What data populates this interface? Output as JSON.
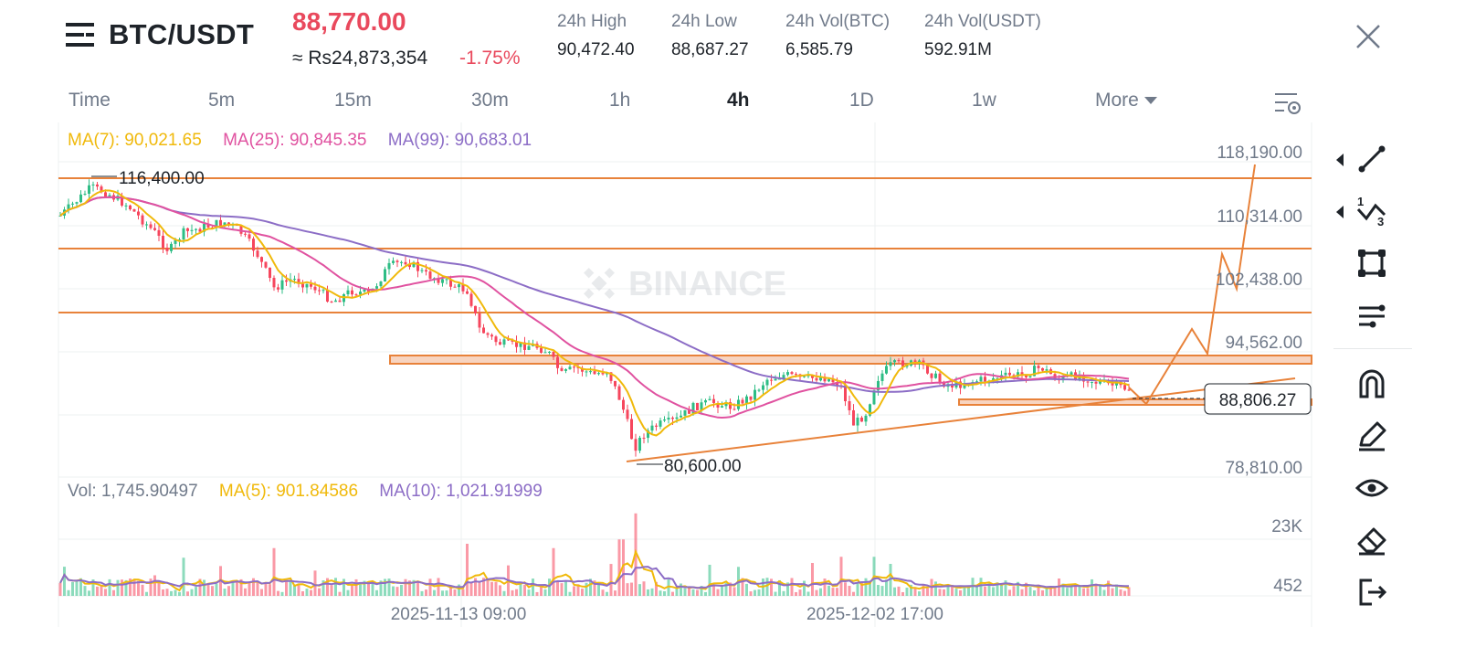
{
  "header": {
    "pair": "BTC/USDT",
    "price": "88,770.00",
    "converted": "≈ Rs24,873,354",
    "change": "-1.75%",
    "stats": [
      {
        "label": "24h High",
        "value": "90,472.40"
      },
      {
        "label": "24h Low",
        "value": "88,687.27"
      },
      {
        "label": "24h Vol(BTC)",
        "value": "6,585.79"
      },
      {
        "label": "24h Vol(USDT)",
        "value": "592.91M"
      }
    ]
  },
  "tabs": [
    {
      "label": "Time"
    },
    {
      "label": "5m"
    },
    {
      "label": "15m"
    },
    {
      "label": "30m"
    },
    {
      "label": "1h"
    },
    {
      "label": "4h"
    },
    {
      "label": "1D"
    },
    {
      "label": "1w"
    },
    {
      "label": "More"
    }
  ],
  "active_tab": "4h",
  "legend": {
    "ma7": "MA(7): 90,021.65",
    "ma25": "MA(25): 90,845.35",
    "ma99": "MA(99): 90,683.01"
  },
  "volume_legend": {
    "vol": "Vol: 1,745.90497",
    "ma5": "MA(5): 901.84586",
    "ma10": "MA(10): 1,021.91999"
  },
  "watermark": "BINANCE",
  "price_axis": [
    "118,190.00",
    "110,314.00",
    "102,438.00",
    "94,562.00",
    "78,810.00"
  ],
  "current_price_tag": "88,806.27",
  "volume_axis": [
    "23K",
    "452"
  ],
  "date_labels": [
    "2025-11-13 09:00",
    "2025-12-02 17:00"
  ],
  "annotations": {
    "high": "116,400.00",
    "low": "80,600.00"
  },
  "tools": [
    "trend-line-icon",
    "fibonacci-icon",
    "shape-icon",
    "parallel-lines-icon",
    "magnet-icon",
    "pencil-icon",
    "eye-icon",
    "eraser-icon",
    "exit-icon"
  ],
  "colors": {
    "up": "#2ebd85",
    "down": "#f6465d",
    "price_red": "#e9495d",
    "ma7": "#f0b90b",
    "ma25": "#e052a0",
    "ma99": "#8c6dc6",
    "drawing": "#e8823a",
    "text_muted": "#707a8a"
  },
  "chart_data": {
    "type": "candlestick",
    "series": [
      {
        "name": "MA(7)",
        "last": 90021.65
      },
      {
        "name": "MA(25)",
        "last": 90845.35
      },
      {
        "name": "MA(99)",
        "last": 90683.01
      }
    ],
    "period_high": 116400.0,
    "period_low": 80600.0,
    "last_price": 88806.27,
    "y_ticks": [
      118190.0,
      110314.0,
      102438.0,
      94562.0,
      78810.0
    ],
    "x_ticks": [
      "2025-11-13 09:00",
      "2025-12-02 17:00"
    ],
    "volume": {
      "last": 1745.90497,
      "ma5": 901.84586,
      "ma10": 1021.91999,
      "y_ticks": [
        "23K",
        "452"
      ]
    }
  }
}
